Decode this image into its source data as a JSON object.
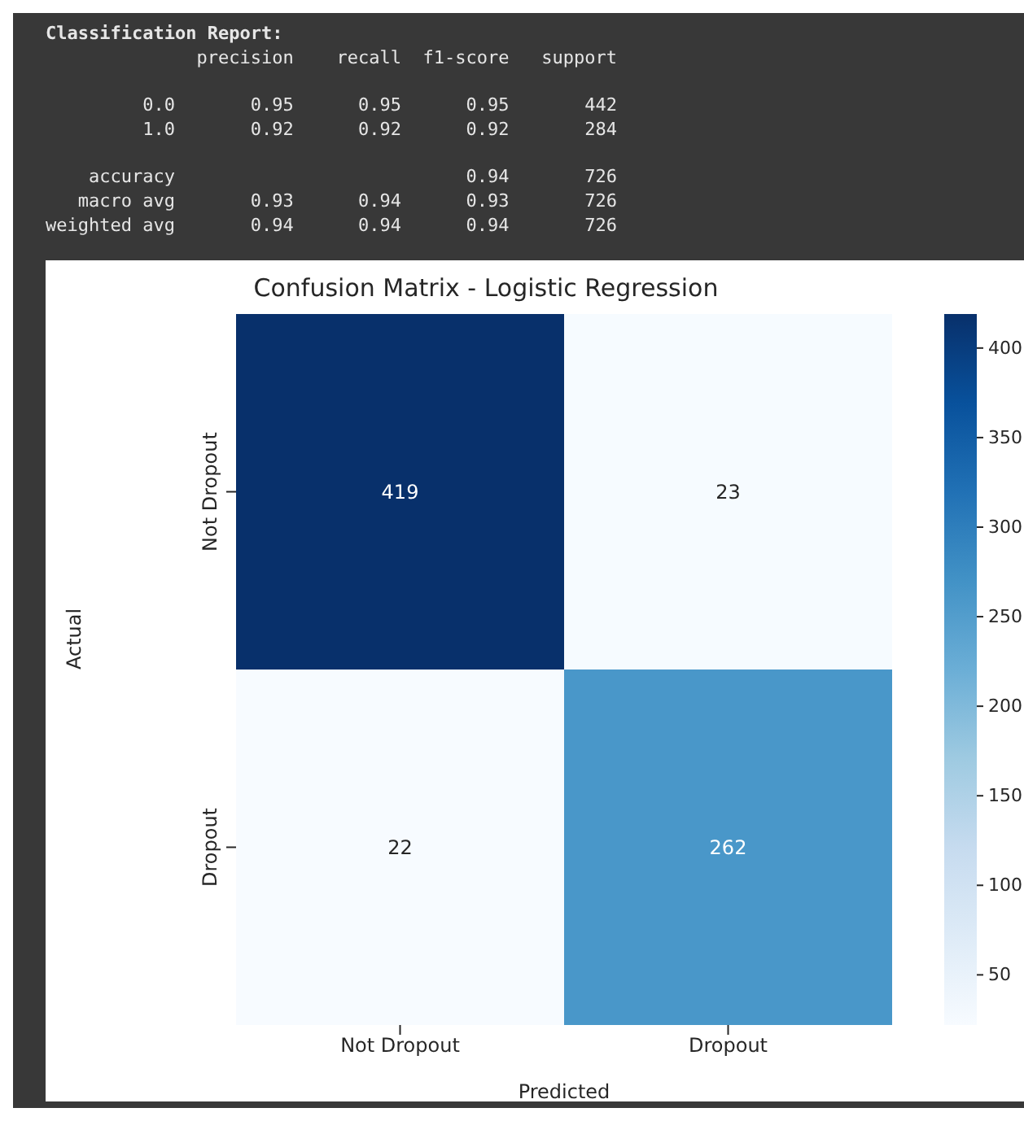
{
  "chart_data": [
    {
      "type": "other",
      "title": "Classification Report:",
      "annotations": [
        "              precision    recall  f1-score   support",
        "         0.0       0.95      0.95      0.95       442",
        "         1.0       0.92      0.92      0.92       284",
        "    accuracy                           0.94       726",
        "   macro avg       0.93      0.94      0.93       726",
        "weighted avg       0.94      0.94      0.94       726"
      ]
    },
    {
      "type": "heatmap",
      "title": "Confusion Matrix - Logistic Regression",
      "xlabel": "Predicted",
      "ylabel": "Actual",
      "categories": [
        "Not Dropout",
        "Dropout"
      ],
      "y_categories": [
        "Not Dropout",
        "Dropout"
      ],
      "cells": [
        [
          419,
          23
        ],
        [
          22,
          262
        ]
      ],
      "data_labels": true,
      "clim": [
        22,
        419
      ],
      "cticks": [
        50,
        100,
        150,
        200,
        250,
        300,
        350,
        400
      ]
    }
  ]
}
